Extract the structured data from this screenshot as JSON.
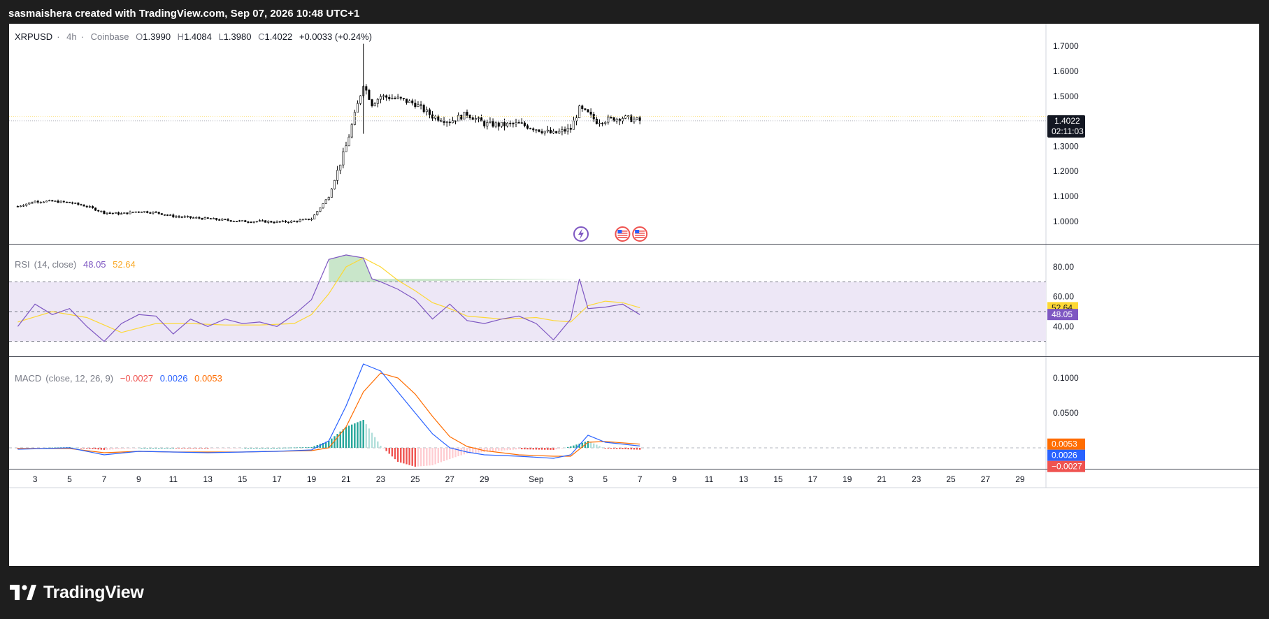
{
  "header": {
    "text": "sasmaishera created with TradingView.com, Sep 07, 2026 10:48 UTC+1"
  },
  "footer": {
    "brand": "TradingView",
    "logo_icon": "tradingview-logo-icon"
  },
  "colors": {
    "rsi": "#7e57c2",
    "rsi_ma": "#fdd835",
    "macd": "#2962ff",
    "signal": "#ff6d00",
    "hist_up": "#26a69a",
    "hist_down": "#ef5350",
    "band": "#ede7f6"
  },
  "chart_data": [
    {
      "type": "candlestick",
      "symbol": "XRPUSD",
      "interval": "4h",
      "exchange": "Coinbase",
      "ohlc_label": {
        "o_key": "O",
        "o": "1.3990",
        "h_key": "H",
        "h": "1.4084",
        "l_key": "L",
        "l": "1.3980",
        "c_key": "C",
        "c": "1.4022",
        "change": "+0.0033 (+0.24%)"
      },
      "sep": "·",
      "y_ticks": [
        "1.7000",
        "1.6000",
        "1.5000",
        "1.4000",
        "1.3000",
        "1.2000",
        "1.1000",
        "1.0000"
      ],
      "y_range": [
        0.91,
        1.79
      ],
      "last_price": "1.4022",
      "countdown": "02:11:03",
      "close_path": [
        [
          "2026-08-02",
          1.06
        ],
        [
          "2026-08-03",
          1.08
        ],
        [
          "2026-08-04",
          1.08
        ],
        [
          "2026-08-05",
          1.075
        ],
        [
          "2026-08-06",
          1.06
        ],
        [
          "2026-08-07",
          1.035
        ],
        [
          "2026-08-08",
          1.03
        ],
        [
          "2026-08-09",
          1.04
        ],
        [
          "2026-08-10",
          1.035
        ],
        [
          "2026-08-11",
          1.02
        ],
        [
          "2026-08-12",
          1.015
        ],
        [
          "2026-08-13",
          1.01
        ],
        [
          "2026-08-14",
          1.005
        ],
        [
          "2026-08-15",
          1.0
        ],
        [
          "2026-08-16",
          1.0
        ],
        [
          "2026-08-17",
          0.997
        ],
        [
          "2026-08-18",
          1.0
        ],
        [
          "2026-08-19",
          1.01
        ],
        [
          "2026-08-20",
          1.1
        ],
        [
          "2026-08-21",
          1.3
        ],
        [
          "2026-08-22",
          1.55
        ],
        [
          "2026-08-22T12",
          1.47
        ],
        [
          "2026-08-23",
          1.5
        ],
        [
          "2026-08-24",
          1.49
        ],
        [
          "2026-08-25",
          1.47
        ],
        [
          "2026-08-26",
          1.42
        ],
        [
          "2026-08-27",
          1.4
        ],
        [
          "2026-08-28",
          1.43
        ],
        [
          "2026-08-29",
          1.39
        ],
        [
          "2026-08-30",
          1.385
        ],
        [
          "2026-08-31",
          1.39
        ],
        [
          "2026-09-01",
          1.37
        ],
        [
          "2026-09-02",
          1.35
        ],
        [
          "2026-09-03",
          1.37
        ],
        [
          "2026-09-03T12",
          1.45
        ],
        [
          "2026-09-04",
          1.43
        ],
        [
          "2026-09-04T12",
          1.4
        ],
        [
          "2026-09-05",
          1.405
        ],
        [
          "2026-09-06",
          1.415
        ],
        [
          "2026-09-07",
          1.4022
        ]
      ],
      "markers": [
        {
          "date": "2026-09-04",
          "icon": "lightning-event-icon"
        },
        {
          "date": "2026-09-06",
          "icon": "us-flag-event-icon"
        },
        {
          "date": "2026-09-07",
          "icon": "us-flag-event-icon"
        }
      ]
    },
    {
      "type": "line",
      "title": "RSI",
      "params": "(14, close)",
      "value": "48.05",
      "ma_value": "52.64",
      "y_ticks": [
        "80.00",
        "60.00",
        "40.00"
      ],
      "y_range": [
        20,
        95
      ],
      "bands": [
        30,
        50,
        70
      ],
      "series": [
        {
          "values": [
            [
              "2026-08-02",
              40
            ],
            [
              "2026-08-03",
              55
            ],
            [
              "2026-08-04",
              48
            ],
            [
              "2026-08-05",
              52
            ],
            [
              "2026-08-06",
              40
            ],
            [
              "2026-08-07",
              30
            ],
            [
              "2026-08-08",
              42
            ],
            [
              "2026-08-09",
              48
            ],
            [
              "2026-08-10",
              47
            ],
            [
              "2026-08-11",
              35
            ],
            [
              "2026-08-12",
              45
            ],
            [
              "2026-08-13",
              40
            ],
            [
              "2026-08-14",
              45
            ],
            [
              "2026-08-15",
              42
            ],
            [
              "2026-08-16",
              43
            ],
            [
              "2026-08-17",
              40
            ],
            [
              "2026-08-18",
              48
            ],
            [
              "2026-08-19",
              58
            ],
            [
              "2026-08-20",
              85
            ],
            [
              "2026-08-21",
              88
            ],
            [
              "2026-08-22",
              86
            ],
            [
              "2026-08-22T12",
              72
            ],
            [
              "2026-08-23",
              70
            ],
            [
              "2026-08-24",
              65
            ],
            [
              "2026-08-25",
              58
            ],
            [
              "2026-08-26",
              45
            ],
            [
              "2026-08-27",
              55
            ],
            [
              "2026-08-28",
              44
            ],
            [
              "2026-08-29",
              42
            ],
            [
              "2026-08-30",
              45
            ],
            [
              "2026-08-31",
              47
            ],
            [
              "2026-09-01",
              42
            ],
            [
              "2026-09-02",
              31
            ],
            [
              "2026-09-03",
              45
            ],
            [
              "2026-09-03T12",
              72
            ],
            [
              "2026-09-04",
              52
            ],
            [
              "2026-09-05",
              53
            ],
            [
              "2026-09-06",
              55
            ],
            [
              "2026-09-07",
              48
            ]
          ]
        },
        {
          "values": [
            [
              "2026-08-02",
              43
            ],
            [
              "2026-08-04",
              50
            ],
            [
              "2026-08-06",
              46
            ],
            [
              "2026-08-08",
              36
            ],
            [
              "2026-08-10",
              42
            ],
            [
              "2026-08-12",
              42
            ],
            [
              "2026-08-14",
              41
            ],
            [
              "2026-08-16",
              41
            ],
            [
              "2026-08-18",
              42
            ],
            [
              "2026-08-19",
              48
            ],
            [
              "2026-08-20",
              62
            ],
            [
              "2026-08-21",
              80
            ],
            [
              "2026-08-22",
              86
            ],
            [
              "2026-08-23",
              80
            ],
            [
              "2026-08-24",
              71
            ],
            [
              "2026-08-25",
              64
            ],
            [
              "2026-08-26",
              56
            ],
            [
              "2026-08-27",
              52
            ],
            [
              "2026-08-28",
              47
            ],
            [
              "2026-08-29",
              46
            ],
            [
              "2026-08-30",
              45
            ],
            [
              "2026-09-01",
              46
            ],
            [
              "2026-09-02",
              44
            ],
            [
              "2026-09-03",
              43
            ],
            [
              "2026-09-04",
              54
            ],
            [
              "2026-09-05",
              57
            ],
            [
              "2026-09-06",
              56
            ],
            [
              "2026-09-07",
              52.64
            ]
          ]
        }
      ]
    },
    {
      "type": "line",
      "title": "MACD",
      "params": "(close, 12, 26, 9)",
      "hist_value": "−0.0027",
      "macd_value": "0.0026",
      "signal_value": "0.0053",
      "y_ticks": [
        "0.1000",
        "0.0500"
      ],
      "y_range": [
        -0.03,
        0.13
      ],
      "series": [
        {
          "values": [
            [
              "2026-08-02",
              -0.002
            ],
            [
              "2026-08-05",
              0.0
            ],
            [
              "2026-08-07",
              -0.01
            ],
            [
              "2026-08-09",
              -0.005
            ],
            [
              "2026-08-11",
              -0.006
            ],
            [
              "2026-08-13",
              -0.007
            ],
            [
              "2026-08-15",
              -0.006
            ],
            [
              "2026-08-17",
              -0.005
            ],
            [
              "2026-08-19",
              -0.003
            ],
            [
              "2026-08-20",
              0.01
            ],
            [
              "2026-08-21",
              0.06
            ],
            [
              "2026-08-22",
              0.12
            ],
            [
              "2026-08-23",
              0.11
            ],
            [
              "2026-08-24",
              0.08
            ],
            [
              "2026-08-25",
              0.05
            ],
            [
              "2026-08-26",
              0.02
            ],
            [
              "2026-08-27",
              0.0
            ],
            [
              "2026-08-28",
              -0.006
            ],
            [
              "2026-08-29",
              -0.01
            ],
            [
              "2026-08-31",
              -0.012
            ],
            [
              "2026-09-02",
              -0.015
            ],
            [
              "2026-09-03",
              -0.01
            ],
            [
              "2026-09-04",
              0.018
            ],
            [
              "2026-09-05",
              0.008
            ],
            [
              "2026-09-07",
              0.0026
            ]
          ]
        },
        {
          "values": [
            [
              "2026-08-02",
              -0.001
            ],
            [
              "2026-08-05",
              -0.001
            ],
            [
              "2026-08-07",
              -0.007
            ],
            [
              "2026-08-09",
              -0.005
            ],
            [
              "2026-08-11",
              -0.006
            ],
            [
              "2026-08-13",
              -0.006
            ],
            [
              "2026-08-15",
              -0.006
            ],
            [
              "2026-08-17",
              -0.005
            ],
            [
              "2026-08-19",
              -0.004
            ],
            [
              "2026-08-20",
              0.0
            ],
            [
              "2026-08-21",
              0.03
            ],
            [
              "2026-08-22",
              0.08
            ],
            [
              "2026-08-23",
              0.107
            ],
            [
              "2026-08-24",
              0.1
            ],
            [
              "2026-08-25",
              0.077
            ],
            [
              "2026-08-26",
              0.045
            ],
            [
              "2026-08-27",
              0.016
            ],
            [
              "2026-08-28",
              0.002
            ],
            [
              "2026-08-29",
              -0.004
            ],
            [
              "2026-08-31",
              -0.01
            ],
            [
              "2026-09-02",
              -0.012
            ],
            [
              "2026-09-03",
              -0.012
            ],
            [
              "2026-09-04",
              0.008
            ],
            [
              "2026-09-05",
              0.009
            ],
            [
              "2026-09-07",
              0.0053
            ]
          ]
        }
      ]
    }
  ],
  "x_axis": {
    "ticks": [
      {
        "label": "3",
        "date": "2026-08-03"
      },
      {
        "label": "5",
        "date": "2026-08-05"
      },
      {
        "label": "7",
        "date": "2026-08-07"
      },
      {
        "label": "9",
        "date": "2026-08-09"
      },
      {
        "label": "11",
        "date": "2026-08-11"
      },
      {
        "label": "13",
        "date": "2026-08-13"
      },
      {
        "label": "15",
        "date": "2026-08-15"
      },
      {
        "label": "17",
        "date": "2026-08-17"
      },
      {
        "label": "19",
        "date": "2026-08-19"
      },
      {
        "label": "21",
        "date": "2026-08-21"
      },
      {
        "label": "23",
        "date": "2026-08-23"
      },
      {
        "label": "25",
        "date": "2026-08-25"
      },
      {
        "label": "27",
        "date": "2026-08-27"
      },
      {
        "label": "29",
        "date": "2026-08-29"
      },
      {
        "label": "Sep",
        "date": "2026-09-01"
      },
      {
        "label": "3",
        "date": "2026-09-03"
      },
      {
        "label": "5",
        "date": "2026-09-05"
      },
      {
        "label": "7",
        "date": "2026-09-07"
      },
      {
        "label": "9",
        "date": "2026-09-09"
      },
      {
        "label": "11",
        "date": "2026-09-11"
      },
      {
        "label": "13",
        "date": "2026-09-13"
      },
      {
        "label": "15",
        "date": "2026-09-15"
      },
      {
        "label": "17",
        "date": "2026-09-17"
      },
      {
        "label": "19",
        "date": "2026-09-19"
      },
      {
        "label": "21",
        "date": "2026-09-21"
      },
      {
        "label": "23",
        "date": "2026-09-23"
      },
      {
        "label": "25",
        "date": "2026-09-25"
      },
      {
        "label": "27",
        "date": "2026-09-27"
      },
      {
        "label": "29",
        "date": "2026-09-29"
      }
    ],
    "range": [
      "2026-08-01T12",
      "2026-09-30T12"
    ]
  }
}
